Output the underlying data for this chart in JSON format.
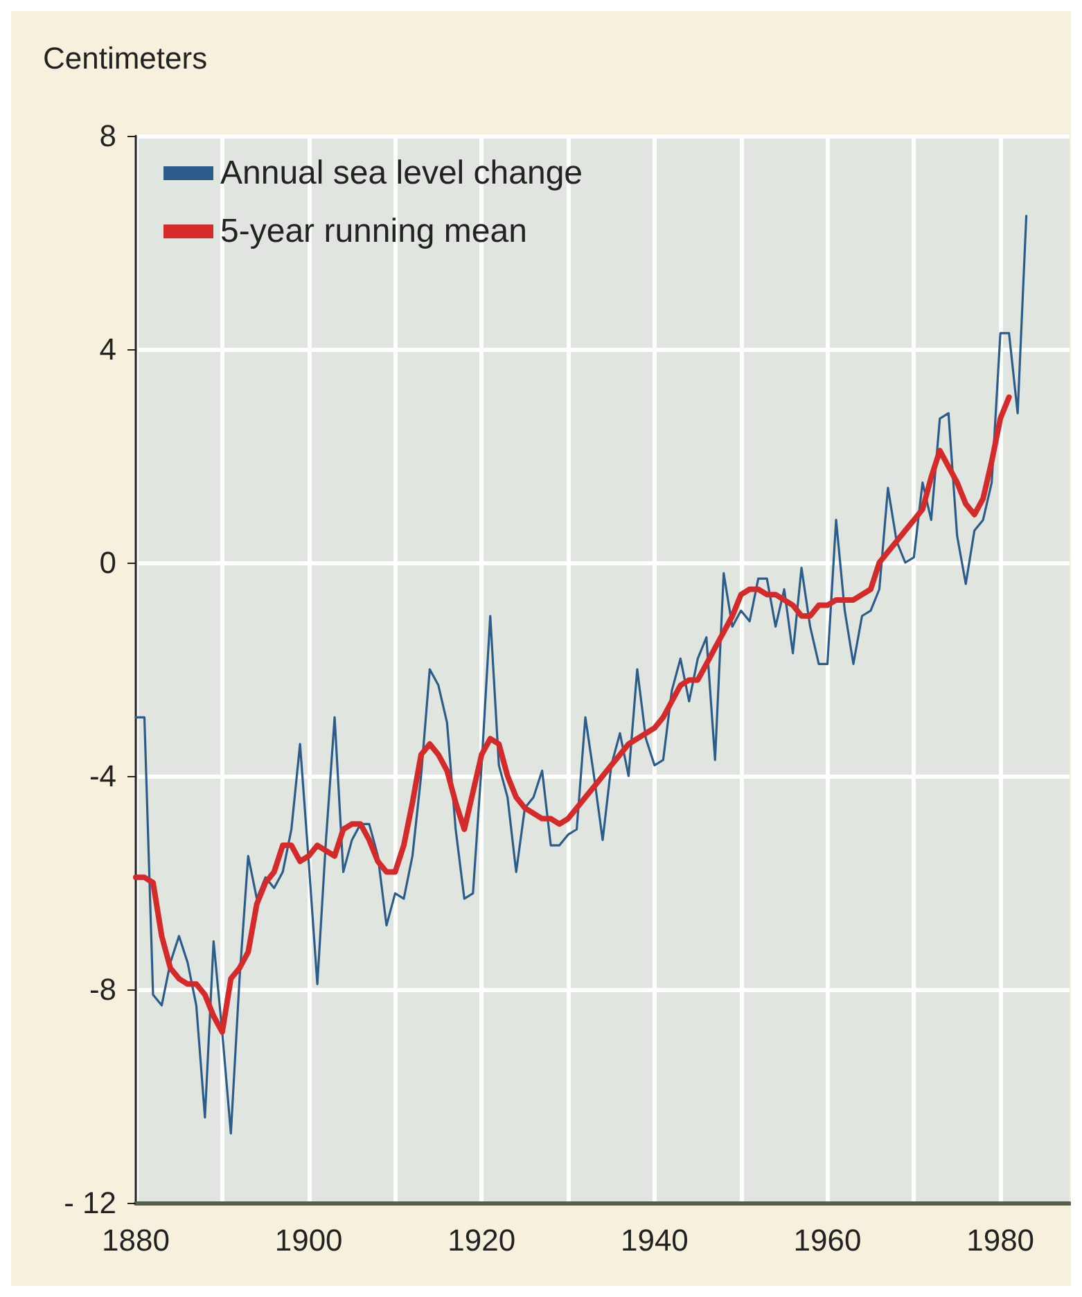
{
  "chart_data": {
    "type": "line",
    "ylabel": "Centimeters",
    "xlim": [
      1880,
      1988
    ],
    "ylim": [
      -12,
      8
    ],
    "xticks": [
      1880,
      {
        "value": 1890,
        "label": null
      },
      1900,
      {
        "value": 1910,
        "label": null
      },
      1920,
      {
        "value": 1930,
        "label": null
      },
      1940,
      {
        "value": 1950,
        "label": null
      },
      1960,
      {
        "value": 1970,
        "label": null
      },
      1980
    ],
    "yticks": [
      {
        "value": -12,
        "label": "- 12"
      },
      -8,
      -4,
      0,
      4,
      8
    ],
    "grid": true,
    "legend": "top left",
    "marker": "none",
    "series": [
      {
        "name": "Annual sea level change",
        "color": "#2b5c8a",
        "x": [
          1880,
          1881,
          1882,
          1883,
          1884,
          1885,
          1886,
          1887,
          1888,
          1889,
          1890,
          1891,
          1892,
          1893,
          1894,
          1895,
          1896,
          1897,
          1898,
          1899,
          1900,
          1901,
          1902,
          1903,
          1904,
          1905,
          1906,
          1907,
          1908,
          1909,
          1910,
          1911,
          1912,
          1913,
          1914,
          1915,
          1916,
          1917,
          1918,
          1919,
          1920,
          1921,
          1922,
          1923,
          1924,
          1925,
          1926,
          1927,
          1928,
          1929,
          1930,
          1931,
          1932,
          1933,
          1934,
          1935,
          1936,
          1937,
          1938,
          1939,
          1940,
          1941,
          1942,
          1943,
          1944,
          1945,
          1946,
          1947,
          1948,
          1949,
          1950,
          1951,
          1952,
          1953,
          1954,
          1955,
          1956,
          1957,
          1958,
          1959,
          1960,
          1961,
          1962,
          1963,
          1964,
          1965,
          1966,
          1967,
          1968,
          1969,
          1970,
          1971,
          1972,
          1973,
          1974,
          1975,
          1976,
          1977,
          1978,
          1979,
          1980,
          1981,
          1982,
          1983
        ],
        "values": [
          -2.9,
          -2.9,
          -8.1,
          -8.3,
          -7.5,
          -7.0,
          -7.5,
          -8.3,
          -10.4,
          -7.1,
          -8.8,
          -10.7,
          -7.8,
          -5.5,
          -6.3,
          -5.9,
          -6.1,
          -5.8,
          -5.0,
          -3.4,
          -5.6,
          -7.9,
          -5.2,
          -2.9,
          -5.8,
          -5.2,
          -4.9,
          -4.9,
          -5.5,
          -6.8,
          -6.2,
          -6.3,
          -5.5,
          -4.0,
          -2.0,
          -2.3,
          -3.0,
          -5.0,
          -6.3,
          -6.2,
          -3.8,
          -1.0,
          -3.8,
          -4.4,
          -5.8,
          -4.6,
          -4.4,
          -3.9,
          -5.3,
          -5.3,
          -5.1,
          -5.0,
          -2.9,
          -4.0,
          -5.2,
          -3.8,
          -3.2,
          -4.0,
          -2.0,
          -3.3,
          -3.8,
          -3.7,
          -2.4,
          -1.8,
          -2.6,
          -1.8,
          -1.4,
          -3.7,
          -0.2,
          -1.2,
          -0.9,
          -1.1,
          -0.3,
          -0.3,
          -1.2,
          -0.5,
          -1.7,
          -0.1,
          -1.2,
          -1.9,
          -1.9,
          0.8,
          -0.9,
          -1.9,
          -1.0,
          -0.9,
          -0.5,
          1.4,
          0.4,
          0.0,
          0.1,
          1.5,
          0.8,
          2.7,
          2.8,
          0.5,
          -0.4,
          0.6,
          0.8,
          1.5,
          4.3,
          4.3,
          2.8,
          6.5
        ]
      },
      {
        "name": "5-year running mean",
        "color": "#d42a2a",
        "x": [
          1880,
          1881,
          1882,
          1883,
          1884,
          1885,
          1886,
          1887,
          1888,
          1889,
          1890,
          1891,
          1892,
          1893,
          1894,
          1895,
          1896,
          1897,
          1898,
          1899,
          1900,
          1901,
          1902,
          1903,
          1904,
          1905,
          1906,
          1907,
          1908,
          1909,
          1910,
          1911,
          1912,
          1913,
          1914,
          1915,
          1916,
          1917,
          1918,
          1919,
          1920,
          1921,
          1922,
          1923,
          1924,
          1925,
          1926,
          1927,
          1928,
          1929,
          1930,
          1931,
          1932,
          1933,
          1934,
          1935,
          1936,
          1937,
          1938,
          1939,
          1940,
          1941,
          1942,
          1943,
          1944,
          1945,
          1946,
          1947,
          1948,
          1949,
          1950,
          1951,
          1952,
          1953,
          1954,
          1955,
          1956,
          1957,
          1958,
          1959,
          1960,
          1961,
          1962,
          1963,
          1964,
          1965,
          1966,
          1967,
          1968,
          1969,
          1970,
          1971,
          1972,
          1973,
          1974,
          1975,
          1976,
          1977,
          1978,
          1979,
          1980,
          1981
        ],
        "values": [
          -5.9,
          -5.9,
          -6.0,
          -7.0,
          -7.6,
          -7.8,
          -7.9,
          -7.9,
          -8.1,
          -8.5,
          -8.8,
          -7.8,
          -7.6,
          -7.3,
          -6.4,
          -6.0,
          -5.8,
          -5.3,
          -5.3,
          -5.6,
          -5.5,
          -5.3,
          -5.4,
          -5.5,
          -5.0,
          -4.9,
          -4.9,
          -5.2,
          -5.6,
          -5.8,
          -5.8,
          -5.3,
          -4.5,
          -3.6,
          -3.4,
          -3.6,
          -3.9,
          -4.5,
          -5.0,
          -4.3,
          -3.6,
          -3.3,
          -3.4,
          -4.0,
          -4.4,
          -4.6,
          -4.7,
          -4.8,
          -4.8,
          -4.9,
          -4.8,
          -4.6,
          -4.4,
          -4.2,
          -4.0,
          -3.8,
          -3.6,
          -3.4,
          -3.3,
          -3.2,
          -3.1,
          -2.9,
          -2.6,
          -2.3,
          -2.2,
          -2.2,
          -1.9,
          -1.6,
          -1.3,
          -1.0,
          -0.6,
          -0.5,
          -0.5,
          -0.6,
          -0.6,
          -0.7,
          -0.8,
          -1.0,
          -1.0,
          -0.8,
          -0.8,
          -0.7,
          -0.7,
          -0.7,
          -0.6,
          -0.5,
          0.0,
          0.2,
          0.4,
          0.6,
          0.8,
          1.0,
          1.6,
          2.1,
          1.8,
          1.5,
          1.1,
          0.9,
          1.2,
          1.9,
          2.7,
          3.1
        ]
      }
    ]
  }
}
